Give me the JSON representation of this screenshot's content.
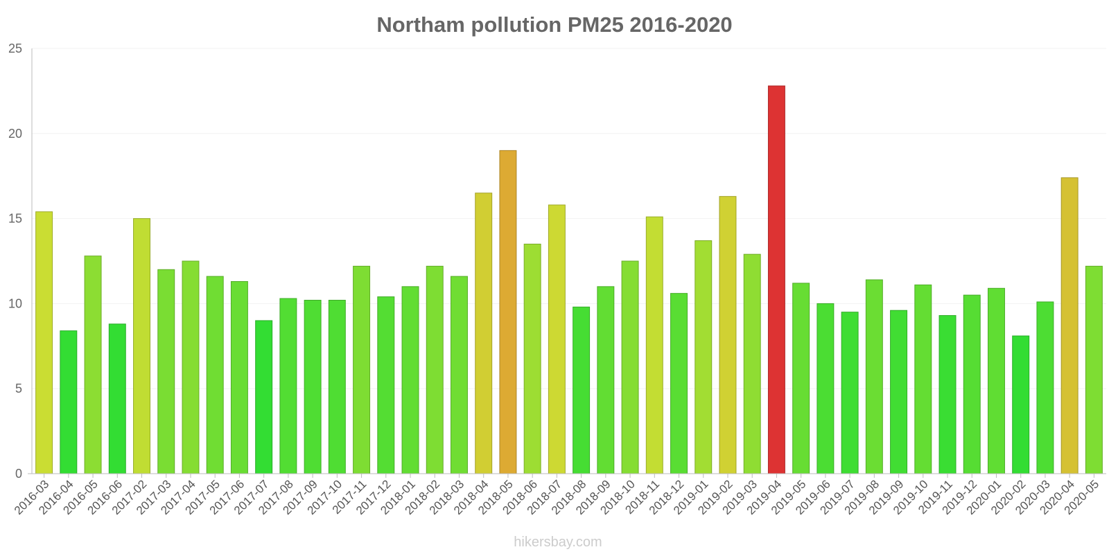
{
  "chart_data": {
    "type": "bar",
    "title": "Northam pollution PM25 2016-2020",
    "xlabel": "",
    "ylabel": "",
    "ylim": [
      0,
      25
    ],
    "yticks": [
      0,
      5,
      10,
      15,
      20,
      25
    ],
    "grid": true,
    "legend": "none",
    "categories": [
      "2016-03",
      "2016-04",
      "2016-05",
      "2016-06",
      "2017-02",
      "2017-03",
      "2017-04",
      "2017-05",
      "2017-06",
      "2017-07",
      "2017-08",
      "2017-09",
      "2017-10",
      "2017-11",
      "2017-12",
      "2018-01",
      "2018-02",
      "2018-03",
      "2018-04",
      "2018-05",
      "2018-06",
      "2018-07",
      "2018-08",
      "2018-09",
      "2018-10",
      "2018-11",
      "2018-12",
      "2019-01",
      "2019-02",
      "2019-03",
      "2019-04",
      "2019-05",
      "2019-06",
      "2019-07",
      "2019-08",
      "2019-09",
      "2019-10",
      "2019-11",
      "2019-12",
      "2020-01",
      "2020-02",
      "2020-03",
      "2020-04",
      "2020-05"
    ],
    "values": [
      15.4,
      8.4,
      12.8,
      8.8,
      15.0,
      12.0,
      12.5,
      11.6,
      11.3,
      9.0,
      10.3,
      10.2,
      10.2,
      12.2,
      10.4,
      11.0,
      12.2,
      11.6,
      16.5,
      19.0,
      13.5,
      15.8,
      9.8,
      11.0,
      12.5,
      15.1,
      10.6,
      13.7,
      16.3,
      12.9,
      22.8,
      11.2,
      10.0,
      9.5,
      11.4,
      9.6,
      11.1,
      9.3,
      10.5,
      10.9,
      8.1,
      10.1,
      17.4,
      12.2
    ],
    "colors": {
      "low": "#33dd33",
      "medium": "#ccdd33",
      "high": "#ddaa33",
      "very_high": "#dd3333"
    }
  },
  "footer": {
    "watermark": "hikersbay.com"
  }
}
